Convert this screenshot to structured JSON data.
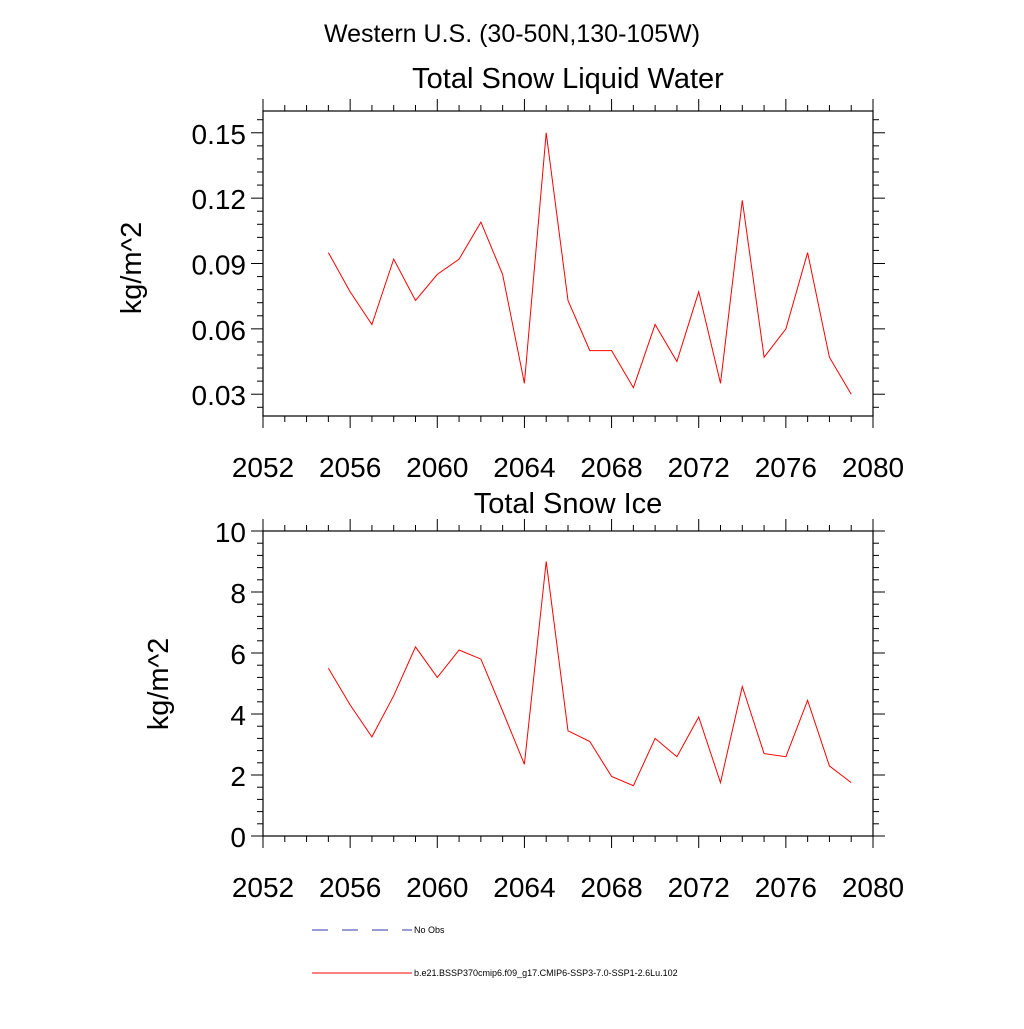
{
  "suptitle": "Western U.S. (30-50N,130-105W)",
  "chart_data": [
    {
      "type": "line",
      "title": "Total Snow Liquid Water",
      "xlabel": "",
      "ylabel": "kg/m^2",
      "xlim": [
        2052,
        2080
      ],
      "ylim": [
        0.02,
        0.16
      ],
      "xticks": [
        2052,
        2056,
        2060,
        2064,
        2068,
        2072,
        2076,
        2080
      ],
      "xtick_labels": [
        "2052",
        "2056",
        "2060",
        "2064",
        "2068",
        "2072",
        "2076",
        "2080"
      ],
      "yticks": [
        0.03,
        0.06,
        0.09,
        0.12,
        0.15
      ],
      "ytick_labels": [
        "0.03",
        "0.06",
        "0.09",
        "0.12",
        "0.15"
      ],
      "grid": false,
      "x": [
        2055,
        2056,
        2057,
        2058,
        2059,
        2060,
        2061,
        2062,
        2063,
        2064,
        2065,
        2066,
        2067,
        2068,
        2069,
        2070,
        2071,
        2072,
        2073,
        2074,
        2075,
        2076,
        2077,
        2078,
        2079
      ],
      "series": [
        {
          "name": "b.e21.BSSP370cmip6.f09_g17.CMIP6-SSP3-7.0-SSP1-2.6Lu.102",
          "color": "#ff0000",
          "values": [
            0.095,
            0.077,
            0.062,
            0.092,
            0.073,
            0.085,
            0.092,
            0.109,
            0.085,
            0.035,
            0.15,
            0.073,
            0.05,
            0.05,
            0.033,
            0.062,
            0.045,
            0.077,
            0.035,
            0.119,
            0.047,
            0.06,
            0.095,
            0.047,
            0.03
          ]
        }
      ]
    },
    {
      "type": "line",
      "title": "Total Snow Ice",
      "xlabel": "",
      "ylabel": "kg/m^2",
      "xlim": [
        2052,
        2080
      ],
      "ylim": [
        0,
        10
      ],
      "xticks": [
        2052,
        2056,
        2060,
        2064,
        2068,
        2072,
        2076,
        2080
      ],
      "xtick_labels": [
        "2052",
        "2056",
        "2060",
        "2064",
        "2068",
        "2072",
        "2076",
        "2080"
      ],
      "yticks": [
        0,
        2,
        4,
        6,
        8,
        10
      ],
      "ytick_labels": [
        "0",
        "2",
        "4",
        "6",
        "8",
        "10"
      ],
      "grid": false,
      "x": [
        2055,
        2056,
        2057,
        2058,
        2059,
        2060,
        2061,
        2062,
        2063,
        2064,
        2065,
        2066,
        2067,
        2068,
        2069,
        2070,
        2071,
        2072,
        2073,
        2074,
        2075,
        2076,
        2077,
        2078,
        2079
      ],
      "series": [
        {
          "name": "b.e21.BSSP370cmip6.f09_g17.CMIP6-SSP3-7.0-SSP1-2.6Lu.102",
          "color": "#ff0000",
          "values": [
            5.5,
            4.3,
            3.25,
            4.6,
            6.2,
            5.2,
            6.1,
            5.8,
            4.1,
            2.35,
            9.0,
            3.45,
            3.1,
            1.95,
            1.65,
            3.2,
            2.6,
            3.9,
            1.75,
            4.9,
            2.7,
            2.6,
            4.45,
            2.3,
            1.75
          ]
        }
      ]
    }
  ],
  "legend": {
    "placement": "bottom",
    "entries": [
      {
        "label": "No Obs",
        "color": "#3a3aaa",
        "style": "dashed"
      },
      {
        "label": "b.e21.BSSP370cmip6.f09_g17.CMIP6-SSP3-7.0-SSP1-2.6Lu.102",
        "color": "#ff0000",
        "style": "solid"
      }
    ]
  }
}
